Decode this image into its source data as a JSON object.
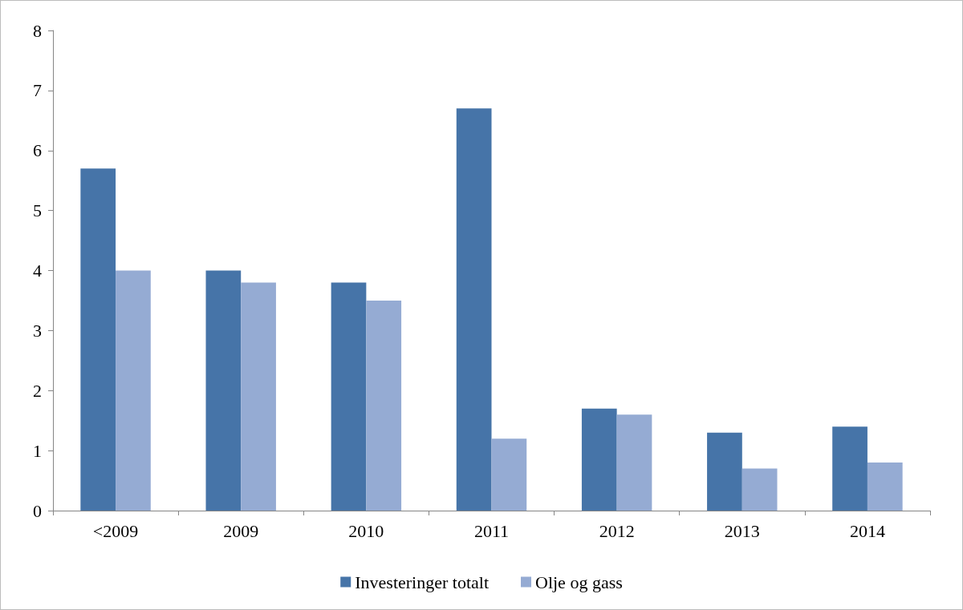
{
  "chart_data": {
    "type": "bar",
    "categories": [
      "<2009",
      "2009",
      "2010",
      "2011",
      "2012",
      "2013",
      "2014"
    ],
    "series": [
      {
        "name": "Investeringer totalt",
        "color": "#4674a8",
        "values": [
          5.7,
          4.0,
          3.8,
          6.7,
          1.7,
          1.3,
          1.4
        ]
      },
      {
        "name": "Olje og gass",
        "color": "#95abd3",
        "values": [
          4.0,
          3.8,
          3.5,
          1.2,
          1.6,
          0.7,
          0.8
        ]
      }
    ],
    "ylim": [
      0,
      8
    ],
    "yticks": [
      0,
      1,
      2,
      3,
      4,
      5,
      6,
      7,
      8
    ],
    "grid": false,
    "legend": "bottom"
  }
}
